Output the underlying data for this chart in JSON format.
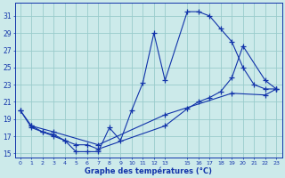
{
  "title": "Graphe des températures (°C)",
  "bg_color": "#cceaea",
  "grid_color": "#99cccc",
  "line_color": "#1133aa",
  "xlim": [
    -0.5,
    23.5
  ],
  "ylim": [
    14.5,
    32.5
  ],
  "yticks": [
    15,
    17,
    19,
    21,
    23,
    25,
    27,
    29,
    31
  ],
  "xticks": [
    0,
    1,
    2,
    3,
    4,
    5,
    6,
    7,
    8,
    9,
    10,
    11,
    12,
    13,
    15,
    16,
    17,
    18,
    19,
    20,
    21,
    22,
    23
  ],
  "xtick_labels": [
    "0",
    "1",
    "2",
    "3",
    "4",
    "5",
    "6",
    "7",
    "8",
    "9",
    "10",
    "11",
    "12",
    "13",
    "15",
    "16",
    "17",
    "18",
    "19",
    "20",
    "21",
    "22",
    "23"
  ],
  "line1_x": [
    0,
    1,
    2,
    3,
    4,
    5,
    6,
    7,
    8,
    9,
    10,
    11,
    12,
    13,
    15,
    16,
    17,
    18,
    19,
    20,
    21,
    22,
    23
  ],
  "line1_y": [
    20.0,
    18.0,
    17.5,
    17.0,
    16.5,
    15.2,
    15.2,
    15.2,
    18.0,
    16.5,
    20.0,
    23.2,
    29.0,
    23.5,
    31.5,
    31.5,
    31.0,
    29.5,
    28.0,
    25.0,
    23.0,
    22.5,
    22.5
  ],
  "line2_x": [
    1,
    2,
    3,
    4,
    5,
    6,
    7,
    13,
    15,
    16,
    17,
    18,
    19,
    20,
    22,
    23
  ],
  "line2_y": [
    18.2,
    17.5,
    17.2,
    16.5,
    16.0,
    16.0,
    15.5,
    18.2,
    20.2,
    21.0,
    21.5,
    22.2,
    23.8,
    27.5,
    23.5,
    22.5
  ],
  "line3_x": [
    0,
    1,
    3,
    7,
    13,
    19,
    22,
    23
  ],
  "line3_y": [
    20.0,
    18.2,
    17.5,
    16.0,
    19.5,
    22.0,
    21.8,
    22.5
  ]
}
